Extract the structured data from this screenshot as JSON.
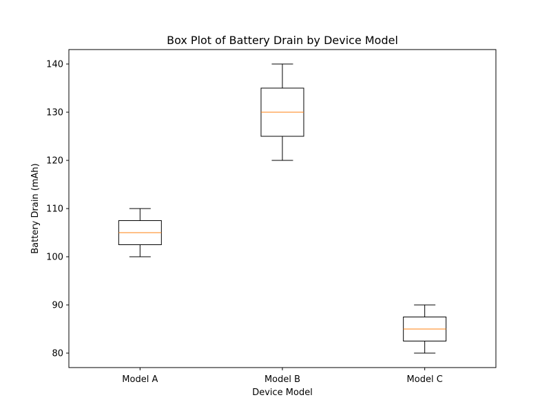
{
  "chart_data": {
    "type": "box",
    "title": "Box Plot of Battery Drain by Device Model",
    "xlabel": "Device Model",
    "ylabel": "Battery Drain (mAh)",
    "ylim": [
      77,
      143
    ],
    "yticks": [
      80,
      90,
      100,
      110,
      120,
      130,
      140
    ],
    "grid": false,
    "categories": [
      "Model A",
      "Model B",
      "Model C"
    ],
    "boxes": [
      {
        "category": "Model A",
        "min": 100,
        "q1": 102.5,
        "median": 105,
        "q3": 107.5,
        "max": 110
      },
      {
        "category": "Model B",
        "min": 120,
        "q1": 125,
        "median": 130,
        "q3": 135,
        "max": 140
      },
      {
        "category": "Model C",
        "min": 80,
        "q1": 82.5,
        "median": 85,
        "q3": 87.5,
        "max": 90
      }
    ],
    "colors": {
      "box": "#000000",
      "median": "#ff7f0e",
      "axes": "#000000"
    }
  }
}
